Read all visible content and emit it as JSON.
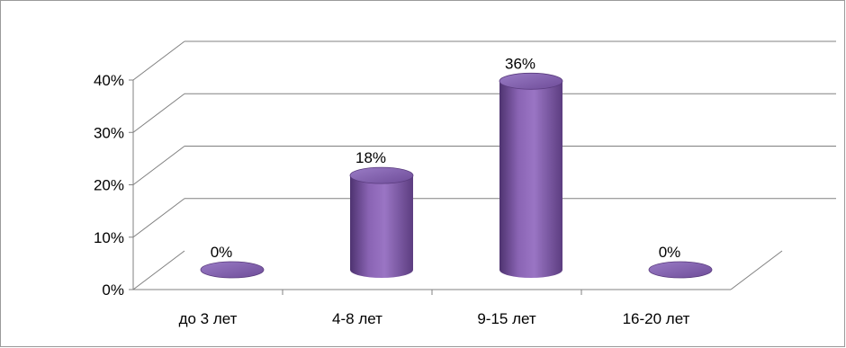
{
  "chart_data": {
    "type": "bar",
    "title": "",
    "xlabel": "",
    "ylabel": "",
    "categories": [
      "до 3 лет",
      "4-8 лет",
      "9-15 лет",
      "16-20 лет"
    ],
    "values": [
      0,
      18,
      36,
      0
    ],
    "value_labels": [
      "0%",
      "18%",
      "36%",
      "0%"
    ],
    "ylim": [
      0,
      40
    ],
    "yticks": [
      0,
      10,
      20,
      30,
      40
    ],
    "ytick_labels": [
      "0%",
      "10%",
      "20%",
      "30%",
      "40%"
    ],
    "grid": true,
    "legend": "none",
    "bar_color": "#8a64b4",
    "bar_style": "3d-cylinder"
  }
}
